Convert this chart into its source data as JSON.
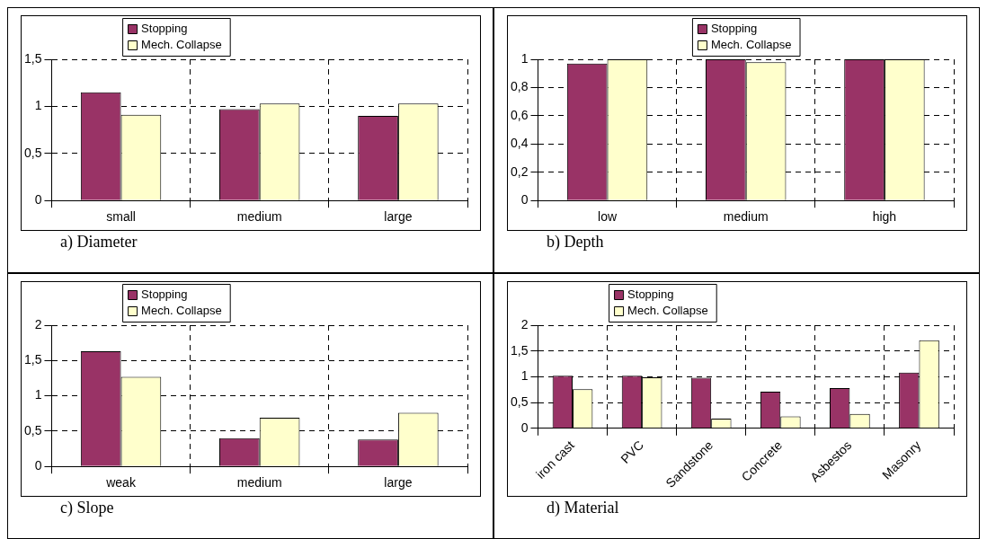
{
  "chart_data": [
    {
      "type": "bar",
      "title": "a) Diameter",
      "categories": [
        "small",
        "medium",
        "large"
      ],
      "series": [
        {
          "name": "Stopping",
          "color": "#993366",
          "values": [
            1.15,
            0.97,
            0.9
          ]
        },
        {
          "name": "Mech. Collapse",
          "color": "#ffffcc",
          "values": [
            0.91,
            1.03,
            1.03
          ]
        }
      ],
      "ylim": [
        0,
        1.5
      ],
      "yticks": [
        0,
        {
          "value": 0.5,
          "label": "0,5"
        },
        1,
        {
          "value": 1.5,
          "label": "1,5"
        }
      ],
      "grid": true,
      "legend": "top left"
    },
    {
      "type": "bar",
      "title": "b) Depth",
      "categories": [
        "low",
        "medium",
        "high"
      ],
      "series": [
        {
          "name": "Stopping",
          "color": "#993366",
          "values": [
            0.97,
            1,
            1
          ]
        },
        {
          "name": "Mech. Collapse",
          "color": "#ffffcc",
          "values": [
            1,
            0.98,
            1
          ]
        }
      ],
      "ylim": [
        0,
        1
      ],
      "yticks": [
        0,
        {
          "value": 0.2,
          "label": "0,2"
        },
        {
          "value": 0.4,
          "label": "0,4"
        },
        {
          "value": 0.6,
          "label": "0,6"
        },
        {
          "value": 0.8,
          "label": "0,8"
        },
        1
      ],
      "grid": true,
      "legend": "top"
    },
    {
      "type": "bar",
      "title": "c) Slope",
      "categories": [
        "weak",
        "medium",
        "large"
      ],
      "series": [
        {
          "name": "Stopping",
          "color": "#993366",
          "values": [
            1.63,
            0.4,
            0.38
          ]
        },
        {
          "name": "Mech. Collapse",
          "color": "#ffffcc",
          "values": [
            1.27,
            0.69,
            0.76
          ]
        }
      ],
      "ylim": [
        0,
        2
      ],
      "yticks": [
        0,
        {
          "value": 0.5,
          "label": "0,5"
        },
        1,
        {
          "value": 1.5,
          "label": "1,5"
        },
        2
      ],
      "grid": true,
      "legend": "top left"
    },
    {
      "type": "bar",
      "title": "d) Material",
      "categories": [
        "iron cast",
        "PVC",
        "Sandstone",
        "Concrete",
        "Asbestos",
        "Masonry"
      ],
      "series": [
        {
          "name": "Stopping",
          "color": "#993366",
          "values": [
            1.02,
            1.02,
            0.98,
            0.71,
            0.78,
            1.08
          ]
        },
        {
          "name": "Mech. Collapse",
          "color": "#ffffcc",
          "values": [
            0.76,
            0.99,
            0.19,
            0.23,
            0.28,
            1.71
          ]
        }
      ],
      "ylim": [
        0,
        2
      ],
      "yticks": [
        0,
        {
          "value": 0.5,
          "label": "0,5"
        },
        1,
        {
          "value": 1.5,
          "label": "1,5"
        },
        2
      ],
      "grid": true,
      "legend": "top left"
    }
  ]
}
